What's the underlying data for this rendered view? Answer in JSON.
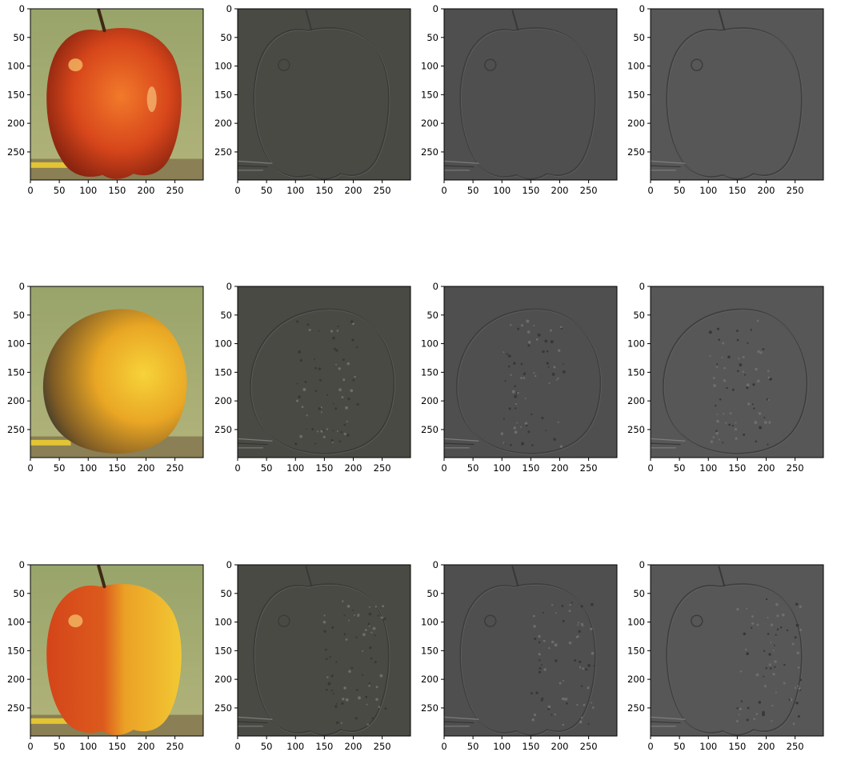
{
  "figure": {
    "grid": {
      "rows": 3,
      "cols": 4
    },
    "axis": {
      "xticks": [
        "0",
        "50",
        "100",
        "150",
        "200",
        "250"
      ],
      "yticks": [
        "0",
        "50",
        "100",
        "150",
        "200",
        "250"
      ],
      "xlim": [
        0,
        299
      ],
      "ylim": [
        299,
        0
      ]
    },
    "rows": [
      {
        "subject": "apple",
        "panels": [
          {
            "kind": "photo",
            "level": 0
          },
          {
            "kind": "laplacian",
            "level": 1
          },
          {
            "kind": "laplacian",
            "level": 2
          },
          {
            "kind": "laplacian",
            "level": 3
          }
        ]
      },
      {
        "subject": "orange",
        "panels": [
          {
            "kind": "photo",
            "level": 0
          },
          {
            "kind": "laplacian",
            "level": 1
          },
          {
            "kind": "laplacian",
            "level": 2
          },
          {
            "kind": "laplacian",
            "level": 3
          }
        ]
      },
      {
        "subject": "blend",
        "panels": [
          {
            "kind": "photo",
            "level": 0
          },
          {
            "kind": "laplacian",
            "level": 1
          },
          {
            "kind": "laplacian",
            "level": 2
          },
          {
            "kind": "laplacian",
            "level": 3
          }
        ]
      }
    ],
    "colors": {
      "background_green": "#a3ac72",
      "apple_red": "#d8451a",
      "orange_yellow": "#f0b82a",
      "laplacian_gray": "#4e4e4e",
      "pencil_yellow": "#e2c434"
    }
  }
}
